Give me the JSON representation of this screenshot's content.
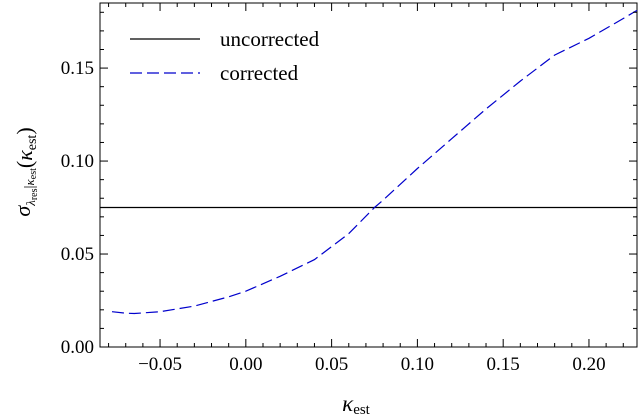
{
  "chart_data": {
    "type": "line",
    "xlabel": {
      "base": "κ",
      "sub": "est"
    },
    "ylabel": {
      "sigma": "σ",
      "sub_lambda": "λ",
      "sub_lambda_sub": "res",
      "sub_bar": "|",
      "sub_kappa": "κ",
      "sub_kappa_sub": "est",
      "paren_open": "(",
      "kappa": "κ",
      "kappa_sub": "est",
      "paren_close": ")"
    },
    "xlim": [
      -0.085,
      0.228
    ],
    "ylim": [
      0.0,
      0.185
    ],
    "xticks": [
      -0.05,
      0.0,
      0.05,
      0.1,
      0.15,
      0.2
    ],
    "xtick_labels": [
      "−0.05",
      "0.00",
      "0.05",
      "0.10",
      "0.15",
      "0.20"
    ],
    "yticks": [
      0.0,
      0.05,
      0.1,
      0.15
    ],
    "ytick_labels": [
      "0.00",
      "0.05",
      "0.10",
      "0.15"
    ],
    "grid": false,
    "legend_position": "top-left",
    "series": [
      {
        "name": "uncorrected",
        "color": "#000000",
        "dash": "solid",
        "x": [
          -0.085,
          0.228
        ],
        "y": [
          0.075,
          0.075
        ]
      },
      {
        "name": "corrected",
        "color": "#0000cc",
        "dash": "dashed",
        "x": [
          -0.078,
          -0.07,
          -0.065,
          -0.05,
          -0.03,
          -0.01,
          0.0,
          0.02,
          0.04,
          0.06,
          0.075,
          0.08,
          0.1,
          0.12,
          0.14,
          0.16,
          0.18,
          0.2,
          0.215,
          0.228
        ],
        "y": [
          0.019,
          0.0182,
          0.018,
          0.019,
          0.022,
          0.027,
          0.03,
          0.038,
          0.047,
          0.061,
          0.075,
          0.079,
          0.096,
          0.112,
          0.128,
          0.143,
          0.157,
          0.166,
          0.174,
          0.181
        ]
      }
    ]
  }
}
